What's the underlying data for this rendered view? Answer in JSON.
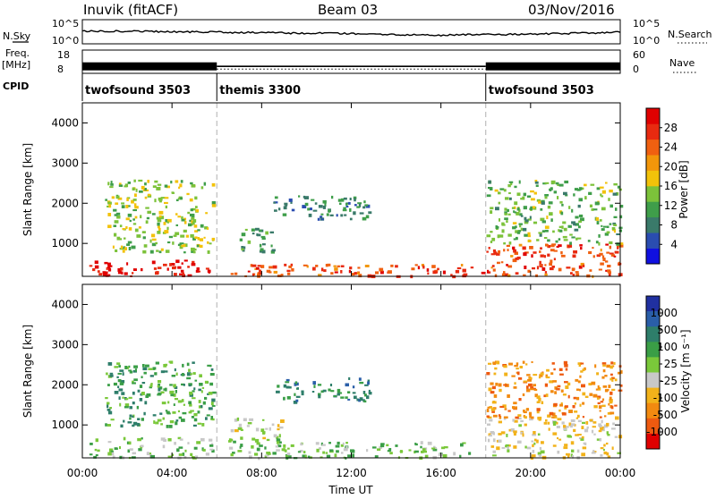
{
  "header": {
    "station": "Inuvik (fitACF)",
    "beam": "Beam 03",
    "date": "03/Nov/2016"
  },
  "noise_panel": {
    "left_label": "N.Sky",
    "right_label": "N.Search",
    "left_ticks": [
      "10^5",
      "10^0"
    ],
    "right_ticks": [
      "10^5",
      "10^0"
    ]
  },
  "freq_panel": {
    "left_label_1": "Freq.",
    "left_label_2": "[MHz]",
    "left_ticks": [
      "18",
      "8"
    ],
    "right_ticks": [
      "60",
      "0"
    ],
    "right_label": "Nave"
  },
  "cpid": {
    "label": "CPID",
    "segments": [
      {
        "name": "twofsound 3503",
        "start_h": 0,
        "end_h": 6
      },
      {
        "name": "themis 3300",
        "start_h": 6,
        "end_h": 18
      },
      {
        "name": "twofsound 3503",
        "start_h": 18,
        "end_h": 24
      }
    ]
  },
  "axes": {
    "xlabel": "Time UT",
    "x_ticks": [
      "00:00",
      "04:00",
      "08:00",
      "12:00",
      "16:00",
      "20:00",
      "00:00"
    ],
    "ylabel": "Slant Range [km]",
    "y_ticks": [
      "1000",
      "2000",
      "3000",
      "4000"
    ]
  },
  "power_colorbar": {
    "label": "Power [dB]",
    "ticks": [
      "4",
      "8",
      "12",
      "16",
      "20",
      "24",
      "28"
    ],
    "colors": [
      "#1010e0",
      "#2a4db0",
      "#3a7a6a",
      "#3f9e4a",
      "#7cc23a",
      "#f2c20a",
      "#f2960a",
      "#f06010",
      "#e82a10",
      "#e00000"
    ]
  },
  "velocity_colorbar": {
    "label": "Velocity [m s⁻¹]",
    "ticks": [
      "1000",
      "500",
      "100",
      "25",
      "-25",
      "-100",
      "-500",
      "-1000"
    ],
    "colors": [
      "#2030a0",
      "#2a5ea8",
      "#2e7e6a",
      "#3a9e46",
      "#7ac83a",
      "#c8c8c8",
      "#f2b21a",
      "#f28a10",
      "#ee5a10",
      "#e00000"
    ]
  },
  "colors": {
    "frame": "#000000",
    "divider": "#b0b0b0"
  },
  "chart_data": [
    {
      "type": "line",
      "title": "",
      "x_range_h": [
        0,
        24
      ],
      "series": [
        {
          "name": "N.Sky",
          "x_h": [
            0,
            2,
            4,
            6,
            8,
            10,
            12,
            14,
            16,
            18,
            20,
            22,
            24
          ],
          "log10_values": [
            2.6,
            2.6,
            2.5,
            2.4,
            2.3,
            2.2,
            2.1,
            1.9,
            1.8,
            1.9,
            2.0,
            2.2,
            2.4
          ]
        }
      ]
    },
    {
      "type": "line",
      "x_range_h": [
        0,
        24
      ],
      "series": [
        {
          "name": "Freq.",
          "x_h": [
            0,
            6,
            6,
            18,
            18,
            24
          ],
          "values_mhz": [
            11,
            11,
            11,
            11,
            11,
            11
          ]
        },
        {
          "name": "Nave",
          "x_h": [
            0,
            6,
            6,
            18,
            18,
            24
          ],
          "values": [
            20,
            20,
            10,
            10,
            20,
            20
          ]
        }
      ]
    },
    {
      "type": "heatmap",
      "title": "Power [dB]",
      "x_range_h": [
        0,
        24
      ],
      "y_range_km": [
        180,
        4500
      ],
      "value_range_db": [
        0,
        30
      ],
      "echo_regions": [
        {
          "x_h": [
            0.3,
            5.8
          ],
          "y_km": [
            200,
            600
          ],
          "db": 28
        },
        {
          "x_h": [
            6.5,
            17.8
          ],
          "y_km": [
            200,
            500
          ],
          "db": 24
        },
        {
          "x_h": [
            1.0,
            5.8
          ],
          "y_km": [
            800,
            2600
          ],
          "db": 14
        },
        {
          "x_h": [
            7.0,
            8.5
          ],
          "y_km": [
            800,
            1400
          ],
          "db": 10
        },
        {
          "x_h": [
            8.5,
            12.8
          ],
          "y_km": [
            1600,
            2200
          ],
          "db": 8
        },
        {
          "x_h": [
            18.0,
            24.0
          ],
          "y_km": [
            200,
            1000
          ],
          "db": 24
        },
        {
          "x_h": [
            18.0,
            24.0
          ],
          "y_km": [
            1000,
            2600
          ],
          "db": 12
        }
      ]
    },
    {
      "type": "heatmap",
      "title": "Velocity [m s⁻¹]",
      "x_range_h": [
        0,
        24
      ],
      "y_range_km": [
        180,
        4500
      ],
      "value_range_ms": [
        -1000,
        1000
      ],
      "echo_regions": [
        {
          "x_h": [
            0.3,
            5.8
          ],
          "y_km": [
            200,
            700
          ],
          "ms": 100
        },
        {
          "x_h": [
            1.0,
            5.8
          ],
          "y_km": [
            1000,
            2600
          ],
          "ms": 300
        },
        {
          "x_h": [
            6.5,
            9.0
          ],
          "y_km": [
            600,
            1200
          ],
          "ms": 0
        },
        {
          "x_h": [
            6.5,
            17.8
          ],
          "y_km": [
            200,
            600
          ],
          "ms": 150
        },
        {
          "x_h": [
            8.5,
            12.8
          ],
          "y_km": [
            1600,
            2200
          ],
          "ms": 500
        },
        {
          "x_h": [
            18.0,
            24.0
          ],
          "y_km": [
            200,
            1200
          ],
          "ms": -150
        },
        {
          "x_h": [
            18.0,
            24.0
          ],
          "y_km": [
            1200,
            2600
          ],
          "ms": -500
        }
      ]
    }
  ]
}
